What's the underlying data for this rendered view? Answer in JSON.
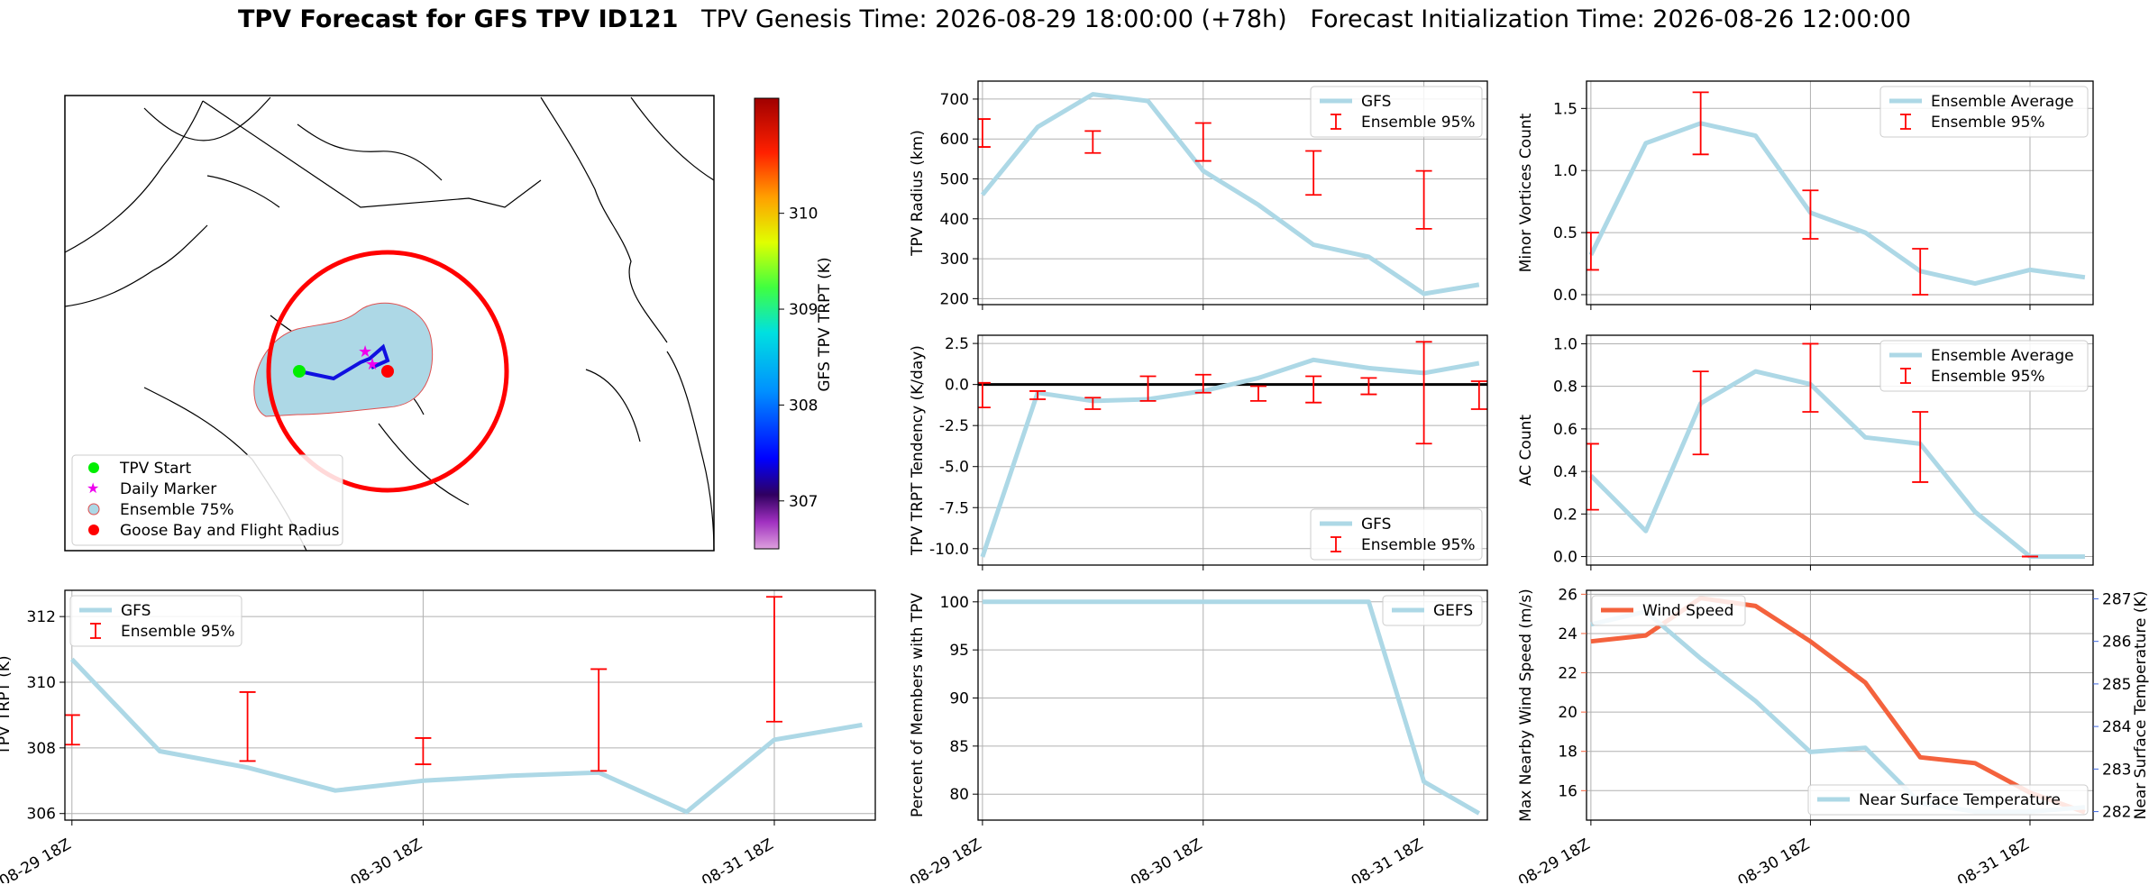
{
  "title": {
    "bold": "TPV Forecast for GFS TPV ID121",
    "genesis": "TPV Genesis Time: 2026-08-29 18:00:00 (+78h)",
    "init": "Forecast Initialization Time: 2026-08-26 12:00:00"
  },
  "colors": {
    "gfs_line": "#add8e6",
    "ensemble": "#ff0000",
    "wind": "#f4623d",
    "temp_axis": "#4169e1",
    "label_wind": "#f4623d"
  },
  "map": {
    "legend": [
      "TPV Start",
      "Daily Marker",
      "Ensemble 75%",
      "Goose Bay and Flight Radius"
    ],
    "colorbar": {
      "label": "GFS TPV TRPT (K)",
      "ticks": [
        307,
        308,
        309,
        310
      ],
      "range": [
        306.5,
        311.2
      ]
    },
    "icons": [
      "green-circle-icon",
      "magenta-star-icon",
      "light-blue-circle-icon",
      "red-circle-icon"
    ]
  },
  "time_ticks": [
    "08-29 18Z",
    "08-30 18Z",
    "08-31 18Z"
  ],
  "chart_data": [
    {
      "id": "radius",
      "type": "line",
      "ylabel": "TPV Radius (km)",
      "ylim": [
        185,
        745
      ],
      "yticks": [
        200,
        300,
        400,
        500,
        600,
        700
      ],
      "x": [
        0,
        1,
        2,
        3,
        4,
        5,
        6,
        7,
        8,
        9
      ],
      "series": [
        {
          "name": "GFS",
          "values": [
            460,
            630,
            712,
            695,
            520,
            435,
            335,
            305,
            212,
            235
          ]
        }
      ],
      "errorbars": {
        "name": "Ensemble 95%",
        "x": [
          0,
          2,
          4,
          6,
          8
        ],
        "low": [
          580,
          565,
          545,
          460,
          375
        ],
        "high": [
          650,
          620,
          640,
          570,
          520
        ]
      },
      "grid": true,
      "legend": "top-right"
    },
    {
      "id": "minor",
      "type": "line",
      "ylabel": "Minor Vortices Count",
      "ylim": [
        -0.08,
        1.72
      ],
      "yticks": [
        0.0,
        0.5,
        1.0,
        1.5
      ],
      "x": [
        0,
        1,
        2,
        3,
        4,
        5,
        6,
        7,
        8,
        9
      ],
      "series": [
        {
          "name": "Ensemble Average",
          "values": [
            0.32,
            1.22,
            1.38,
            1.28,
            0.66,
            0.5,
            0.19,
            0.09,
            0.2,
            0.14
          ]
        }
      ],
      "errorbars": {
        "name": "Ensemble 95%",
        "x": [
          0,
          2,
          4,
          6
        ],
        "low": [
          0.2,
          1.13,
          0.45,
          0.0
        ],
        "high": [
          0.5,
          1.63,
          0.84,
          0.37
        ]
      },
      "grid": true,
      "legend": "top-right"
    },
    {
      "id": "tendency",
      "type": "line",
      "ylabel": "TPV TRPT Tendency (K/day)",
      "ylim": [
        -11.0,
        3.0
      ],
      "yticks": [
        -10.0,
        -7.5,
        -5.0,
        -2.5,
        0.0,
        2.5
      ],
      "x": [
        0,
        1,
        2,
        3,
        4,
        5,
        6,
        7,
        8,
        9
      ],
      "series": [
        {
          "name": "GFS",
          "values": [
            -10.5,
            -0.5,
            -1.0,
            -0.9,
            -0.4,
            0.4,
            1.5,
            1.0,
            0.7,
            1.3
          ]
        }
      ],
      "errorbars": {
        "name": "Ensemble 95%",
        "x": [
          0,
          1,
          2,
          3,
          4,
          5,
          6,
          7,
          8,
          9
        ],
        "low": [
          -1.4,
          -0.9,
          -1.5,
          -1.0,
          -0.5,
          -1.0,
          -1.1,
          -0.6,
          -3.6,
          -1.5
        ],
        "high": [
          0.1,
          -0.4,
          -0.8,
          0.5,
          0.6,
          -0.1,
          0.5,
          0.4,
          2.6,
          0.2
        ]
      },
      "zero_line": true,
      "grid": true,
      "legend": "bottom-right"
    },
    {
      "id": "ac",
      "type": "line",
      "ylabel": "AC Count",
      "ylim": [
        -0.04,
        1.04
      ],
      "yticks": [
        0.0,
        0.2,
        0.4,
        0.6,
        0.8,
        1.0
      ],
      "x": [
        0,
        1,
        2,
        3,
        4,
        5,
        6,
        7,
        8,
        9
      ],
      "series": [
        {
          "name": "Ensemble Average",
          "values": [
            0.38,
            0.12,
            0.72,
            0.87,
            0.81,
            0.56,
            0.53,
            0.21,
            0.0,
            0.0
          ]
        }
      ],
      "errorbars": {
        "name": "Ensemble 95%",
        "x": [
          0,
          2,
          4,
          6,
          8
        ],
        "low": [
          0.22,
          0.48,
          0.68,
          0.35,
          0.0
        ],
        "high": [
          0.53,
          0.87,
          1.0,
          0.68,
          0.0
        ]
      },
      "grid": true,
      "legend": "top-right"
    },
    {
      "id": "trpt",
      "type": "line",
      "ylabel": "TPV TRPT (K)",
      "ylim": [
        305.8,
        312.8
      ],
      "yticks": [
        306,
        308,
        310,
        312
      ],
      "x": [
        0,
        1,
        2,
        3,
        4,
        5,
        6,
        7,
        8,
        9
      ],
      "series": [
        {
          "name": "GFS",
          "values": [
            310.7,
            307.9,
            307.4,
            306.7,
            307.0,
            307.15,
            307.25,
            306.05,
            308.25,
            308.7
          ]
        }
      ],
      "errorbars": {
        "name": "Ensemble 95%",
        "x": [
          0,
          2,
          4,
          6,
          8
        ],
        "low": [
          308.1,
          307.6,
          307.5,
          307.3,
          308.8
        ],
        "high": [
          309.0,
          309.7,
          308.3,
          310.4,
          312.6
        ]
      },
      "grid": true,
      "legend": "top-left"
    },
    {
      "id": "percent",
      "type": "line",
      "ylabel": "Percent of Members with TPV",
      "ylim": [
        77.3,
        101.2
      ],
      "yticks": [
        80,
        85,
        90,
        95,
        100
      ],
      "x": [
        0,
        1,
        2,
        3,
        4,
        5,
        6,
        7,
        8,
        9
      ],
      "series": [
        {
          "name": "GEFS",
          "values": [
            100,
            100,
            100,
            100,
            100,
            100,
            100,
            100,
            81.3,
            78.0
          ]
        }
      ],
      "grid": true,
      "legend": "top-right"
    },
    {
      "id": "wind",
      "type": "line",
      "ylabel": "Max Nearby Wind Speed (m/s)",
      "y2label": "Near Surface Temperature (K)",
      "ylim": [
        14.5,
        26.2
      ],
      "yticks": [
        16,
        18,
        20,
        22,
        24,
        26
      ],
      "y2lim": [
        281.8,
        287.2
      ],
      "y2ticks": [
        282,
        283,
        284,
        285,
        286,
        287
      ],
      "x": [
        0,
        1,
        2,
        3,
        4,
        5,
        6,
        7,
        8,
        9
      ],
      "series": [
        {
          "name": "Wind Speed",
          "axis": "left",
          "values": [
            23.6,
            23.9,
            25.8,
            25.4,
            23.6,
            21.5,
            17.7,
            17.4,
            15.9,
            14.9
          ]
        },
        {
          "name": "Near Surface Temperature",
          "axis": "right",
          "values": [
            286.4,
            286.7,
            285.6,
            284.6,
            283.4,
            283.5,
            282.2,
            282.0,
            282.0,
            282.1
          ]
        }
      ],
      "grid": true,
      "legend": [
        "top-left",
        "bottom-right"
      ]
    }
  ]
}
